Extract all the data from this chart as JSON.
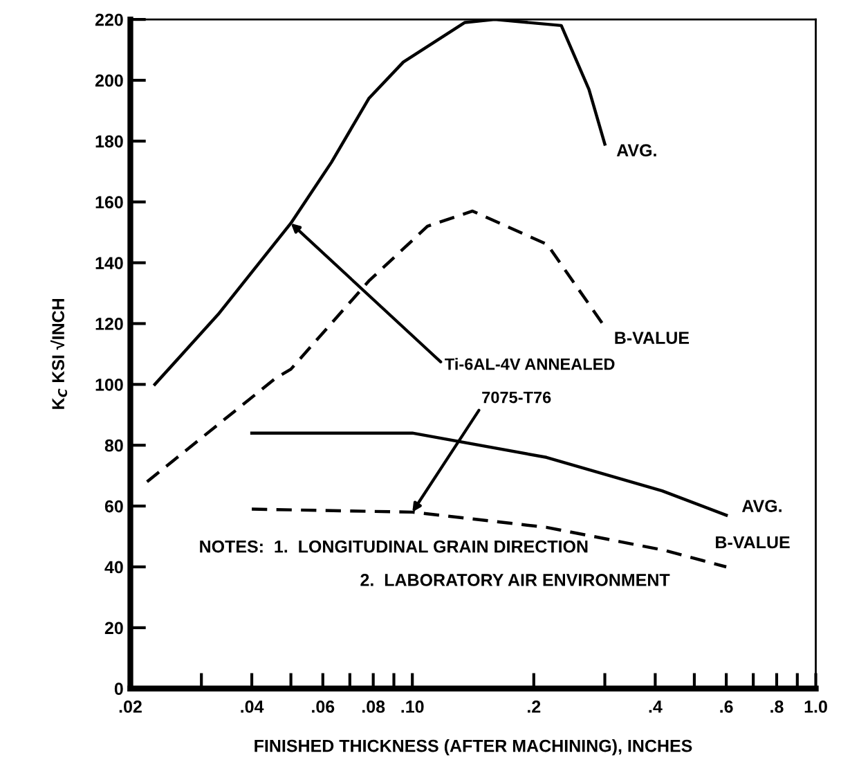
{
  "chart_data": {
    "type": "line",
    "xlabel": "FINISHED THICKNESS (AFTER MACHINING), INCHES",
    "ylabel": "K$_{C}$ KSI √INCH",
    "log": "x",
    "grid": false,
    "legend": false,
    "marker": "none",
    "xlim": [
      0.02,
      1.0
    ],
    "ylim": [
      0,
      220
    ],
    "xticks": [
      {
        "value": 0.02,
        "label": ".02"
      },
      {
        "value": 0.03,
        "label": null
      },
      {
        "value": 0.04,
        "label": ".04"
      },
      {
        "value": 0.05,
        "label": null
      },
      {
        "value": 0.06,
        "label": ".06"
      },
      {
        "value": 0.07,
        "label": null
      },
      {
        "value": 0.08,
        "label": ".08"
      },
      {
        "value": 0.09,
        "label": null
      },
      {
        "value": 0.1,
        "label": ".10"
      },
      {
        "value": 0.2,
        "label": ".2"
      },
      {
        "value": 0.3,
        "label": null
      },
      {
        "value": 0.4,
        "label": ".4"
      },
      {
        "value": 0.5,
        "label": null
      },
      {
        "value": 0.6,
        "label": ".6"
      },
      {
        "value": 0.7,
        "label": null
      },
      {
        "value": 0.8,
        "label": ".8"
      },
      {
        "value": 0.9,
        "label": null
      },
      {
        "value": 1.0,
        "label": "1.0"
      }
    ],
    "yticks": [
      0,
      20,
      40,
      60,
      80,
      100,
      120,
      140,
      160,
      180,
      200,
      220
    ],
    "series": [
      {
        "name": "AVG.",
        "color": "#000000",
        "line_style": "solid",
        "x": [
          0.023,
          0.033,
          0.05,
          0.063,
          0.078,
          0.095,
          0.135,
          0.16,
          0.234,
          0.274,
          0.3
        ],
        "values": [
          100,
          123,
          153,
          173,
          194,
          206,
          219,
          220,
          218,
          197,
          179
        ]
      },
      {
        "name": "B-VALUE",
        "color": "#000000",
        "line_style": "dashed",
        "x": [
          0.022,
          0.0458,
          0.05,
          0.078,
          0.109,
          0.141,
          0.216,
          0.296
        ],
        "values": [
          68,
          102,
          105,
          134,
          152,
          157,
          146,
          120
        ]
      },
      {
        "name": "AVG.",
        "color": "#000000",
        "line_style": "solid",
        "x": [
          0.04,
          0.1,
          0.215,
          0.416,
          0.6
        ],
        "values": [
          84,
          84,
          76,
          65,
          57
        ]
      },
      {
        "name": "B-VALUE",
        "color": "#000000",
        "line_style": "dashed",
        "x": [
          0.04,
          0.1,
          0.215,
          0.42,
          0.6
        ],
        "values": [
          59,
          58,
          53,
          45.5,
          40
        ]
      }
    ],
    "annotations": [
      {
        "text": "Ti-6AL-4V ANNEALED",
        "x": 0.05,
        "y": 153
      },
      {
        "text": "7075-T76",
        "x": 0.1,
        "y": 58
      },
      "NOTES:  1.  LONGITUDINAL GRAIN DIRECTION",
      "2.  LABORATORY AIR ENVIRONMENT"
    ]
  }
}
